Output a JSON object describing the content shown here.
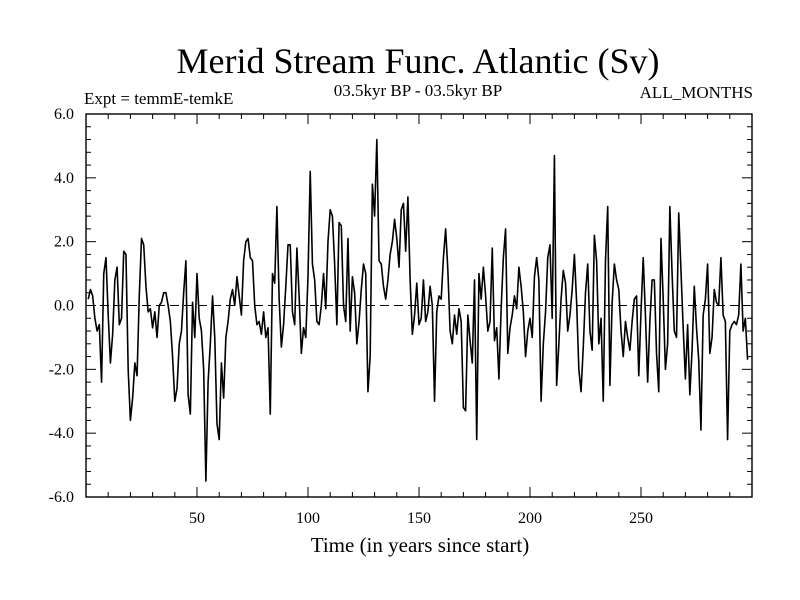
{
  "chart_data": {
    "type": "line",
    "title": "Merid Stream Func. Atlantic (Sv)",
    "subtitle_left": "Expt = temmE-temkE",
    "subtitle_center": "03.5kyr BP - 03.5kyr BP",
    "subtitle_right": "ALL_MONTHS",
    "xlabel": "Time (in years since start)",
    "ylabel": "",
    "xlim": [
      0,
      300
    ],
    "ylim": [
      -6,
      6
    ],
    "xticks": [
      50,
      100,
      150,
      200,
      250
    ],
    "yticks": [
      -6,
      -4,
      -2,
      0,
      2,
      4,
      6
    ],
    "ytick_labels": [
      "-6.0",
      "-4.0",
      "-2.0",
      "0.0",
      "2.0",
      "4.0",
      "6.0"
    ],
    "zero_line": true,
    "series": [
      {
        "name": "temmE-temkE",
        "x_start": 1,
        "x_step": 1,
        "values": [
          0.2,
          0.5,
          0.3,
          -0.4,
          -0.8,
          -0.6,
          -2.4,
          1.0,
          1.5,
          -0.3,
          -1.8,
          -0.9,
          0.8,
          1.2,
          -0.6,
          -0.4,
          1.7,
          1.6,
          -2.0,
          -3.6,
          -2.9,
          -1.8,
          -2.2,
          0.3,
          2.1,
          1.9,
          0.6,
          -0.2,
          -0.1,
          -0.7,
          -0.2,
          -1.0,
          0.0,
          0.1,
          0.4,
          0.4,
          0.0,
          -0.5,
          -1.6,
          -3.0,
          -2.6,
          -1.2,
          -0.8,
          0.4,
          1.4,
          -2.8,
          -3.4,
          0.1,
          -1.0,
          1.0,
          -0.4,
          -0.8,
          -2.0,
          -5.5,
          -2.4,
          -1.2,
          0.3,
          -1.0,
          -3.7,
          -4.2,
          -1.8,
          -2.9,
          -1.0,
          -0.5,
          0.2,
          0.5,
          0.0,
          0.9,
          0.3,
          -0.3,
          1.4,
          2.0,
          2.1,
          1.5,
          1.4,
          0.0,
          -0.6,
          -0.5,
          -0.9,
          -0.2,
          -1.0,
          -0.7,
          -3.4,
          1.0,
          0.7,
          3.1,
          0.2,
          -1.3,
          -0.6,
          0.6,
          1.9,
          1.9,
          -0.2,
          -0.6,
          1.8,
          0.3,
          -1.5,
          -0.7,
          -1.0,
          0.9,
          4.2,
          1.3,
          0.8,
          -0.5,
          -0.6,
          0.0,
          1.0,
          -0.1,
          2.0,
          3.0,
          2.8,
          1.3,
          -0.6,
          2.6,
          2.5,
          0.0,
          -0.5,
          2.1,
          -0.8,
          0.9,
          0.4,
          -1.2,
          -0.5,
          0.5,
          1.3,
          1.0,
          -2.7,
          -1.6,
          3.8,
          2.8,
          5.2,
          1.4,
          1.3,
          0.6,
          0.2,
          0.8,
          1.6,
          2.0,
          2.7,
          2.1,
          1.2,
          3.0,
          3.2,
          1.7,
          3.4,
          0.8,
          -0.9,
          -0.3,
          0.7,
          -0.6,
          -0.4,
          0.8,
          -0.5,
          -0.2,
          0.6,
          0.0,
          -3.0,
          -0.2,
          0.3,
          0.2,
          1.5,
          2.4,
          1.1,
          -0.8,
          -1.2,
          -0.3,
          -0.9,
          -0.1,
          -0.5,
          -3.2,
          -3.3,
          -0.3,
          -1.1,
          -1.8,
          0.8,
          -4.2,
          1.0,
          0.2,
          1.2,
          0.3,
          -0.8,
          -0.5,
          1.8,
          -1.1,
          -0.7,
          -2.3,
          -0.1,
          1.5,
          2.4,
          -1.5,
          -0.7,
          -0.3,
          0.3,
          -0.1,
          1.2,
          0.6,
          -0.2,
          -1.6,
          -0.8,
          -0.4,
          -1.0,
          0.9,
          1.5,
          0.8,
          -3.0,
          -1.2,
          -0.2,
          1.5,
          1.9,
          -0.4,
          4.7,
          -2.5,
          -1.2,
          0.2,
          1.1,
          0.7,
          -0.8,
          -0.3,
          0.5,
          1.6,
          0.1,
          -2.0,
          -2.7,
          -1.3,
          0.4,
          1.3,
          -0.8,
          -1.4,
          2.2,
          1.4,
          -1.2,
          -0.4,
          -3.0,
          1.4,
          3.1,
          -2.5,
          0.1,
          1.3,
          0.8,
          0.5,
          -0.8,
          -1.6,
          -0.5,
          -1.0,
          -1.4,
          -0.5,
          0.2,
          0.3,
          -2.2,
          -0.2,
          1.5,
          -0.3,
          -2.4,
          -0.5,
          0.8,
          0.8,
          -1.5,
          -2.7,
          2.1,
          0.2,
          -2.0,
          -1.2,
          3.1,
          1.0,
          -0.8,
          -1.0,
          2.9,
          1.1,
          -0.7,
          -2.3,
          -0.6,
          -2.8,
          -1.4,
          0.6,
          -0.7,
          -1.7,
          -3.9,
          -0.3,
          0.2,
          1.3,
          -1.5,
          -1.0,
          0.5,
          0.1,
          0.0,
          1.5,
          -0.3,
          -0.5,
          -4.2,
          -0.8,
          -0.6,
          -0.5,
          -0.6,
          -0.3,
          1.3,
          -0.8,
          -0.4,
          -1.7
        ]
      }
    ]
  }
}
